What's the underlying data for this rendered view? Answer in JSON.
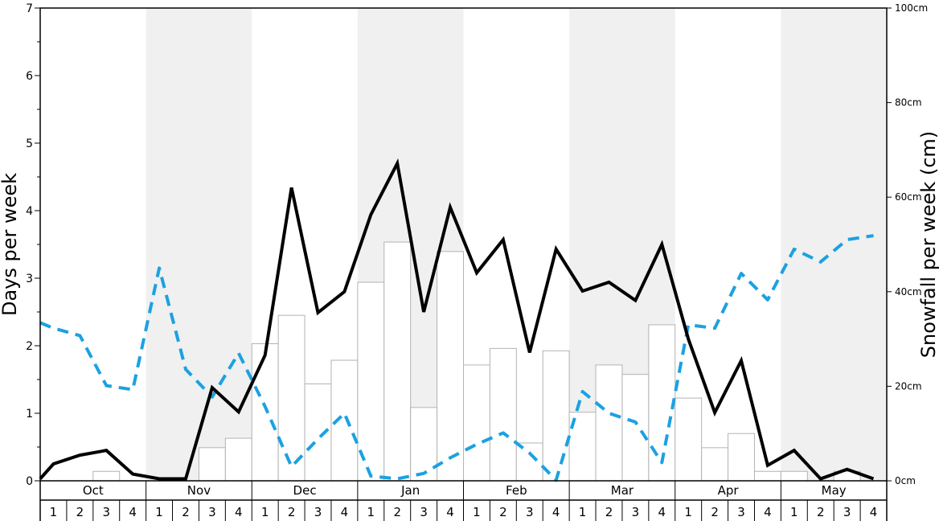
{
  "chart_data": {
    "type": "bar",
    "ylabel": "Days per week",
    "y2label": "Snowfall per week (cm)",
    "ylim": [
      0,
      7
    ],
    "y_ticks": [
      "0",
      "1",
      "2",
      "3",
      "4",
      "5",
      "6",
      "7"
    ],
    "y2lim": [
      0,
      100
    ],
    "y2_ticks": [
      "0cm",
      "20cm",
      "40cm",
      "60cm",
      "80cm",
      "100cm"
    ],
    "months": [
      "Oct",
      "Nov",
      "Dec",
      "Jan",
      "Feb",
      "Mar",
      "Apr",
      "May"
    ],
    "weeks": [
      "1",
      "2",
      "3",
      "4"
    ],
    "colors": {
      "bars_fill": "#ffffff",
      "bars_stroke": "#b3b3b3",
      "band": "#f0f0f0",
      "solid_line": "#000000",
      "dashed_line": "#1ba1e2"
    },
    "series": [
      {
        "kind": "bars",
        "axis": "right",
        "values": [
          0,
          0,
          2,
          0,
          0,
          0,
          7,
          9,
          29,
          35,
          20.5,
          25.5,
          42,
          50.5,
          15.5,
          48.5,
          24.5,
          28,
          8,
          27.5,
          14.5,
          24.5,
          22.5,
          33,
          17.5,
          7,
          10,
          2,
          2,
          0,
          2,
          0
        ]
      },
      {
        "kind": "line",
        "style": "solid",
        "axis": "left",
        "values": [
          0.25,
          0.38,
          0.45,
          0.1,
          0.03,
          0.03,
          1.38,
          1.02,
          1.86,
          4.34,
          2.49,
          2.8,
          3.94,
          4.7,
          2.5,
          4.05,
          3.08,
          3.57,
          1.9,
          3.43,
          2.81,
          2.94,
          2.67,
          3.5,
          2.1,
          1.01,
          1.78,
          0.23,
          0.45,
          0.03,
          0.17,
          0.03
        ]
      },
      {
        "kind": "line",
        "style": "dashed",
        "axis": "left",
        "values": [
          2.26,
          2.15,
          1.41,
          1.35,
          3.15,
          1.65,
          1.24,
          1.89,
          1.1,
          0.21,
          0.62,
          1.0,
          0.07,
          0.03,
          0.11,
          0.34,
          0.54,
          0.71,
          0.41,
          0.01,
          1.32,
          1.0,
          0.87,
          0.27,
          2.31,
          2.26,
          3.07,
          2.68,
          3.43,
          3.24,
          3.57,
          3.63
        ]
      }
    ],
    "solid_line_start": 0.03,
    "dashed_line_start": 2.34
  }
}
